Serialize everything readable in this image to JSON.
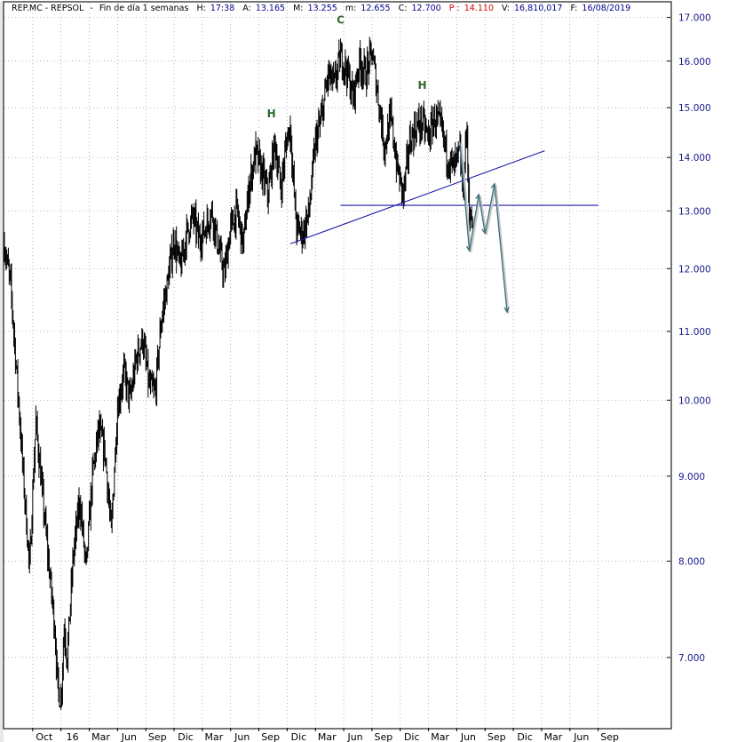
{
  "header": {
    "symbol": "REP.MC - REPSOL",
    "timeframe": "Fin de día 1 semanas",
    "h_label": "H:",
    "h_value": "17:38",
    "a_label": "A:",
    "a_value": "13.165",
    "m_label": "M:",
    "m_value": "13.255",
    "mn_label": "m:",
    "mn_value": "12.655",
    "c_label": "C:",
    "c_value": "12.700",
    "p_label": "P :",
    "p_value": "14.110",
    "v_label": "V:",
    "v_value": "16,810,017",
    "f_label": "F:",
    "f_value": "16/08/2019"
  },
  "chart_data": {
    "type": "line",
    "scale": "log",
    "ylim": [
      6.35,
      17.35
    ],
    "xlim": [
      0,
      212
    ],
    "grid": true,
    "y_ticks": [
      {
        "value": 7,
        "label": "7.000"
      },
      {
        "value": 8,
        "label": "8.000"
      },
      {
        "value": 9,
        "label": "9.000"
      },
      {
        "value": 10,
        "label": "10.000"
      },
      {
        "value": 11,
        "label": "11.000"
      },
      {
        "value": 12,
        "label": "12.000"
      },
      {
        "value": 13,
        "label": "13.000"
      },
      {
        "value": 14,
        "label": "14.000"
      },
      {
        "value": 15,
        "label": "15.000"
      },
      {
        "value": 16,
        "label": "16.000"
      },
      {
        "value": 17,
        "label": "17.000"
      }
    ],
    "x_ticks": [
      {
        "week": 9,
        "label": "Oct"
      },
      {
        "week": 18,
        "label": "16"
      },
      {
        "week": 27,
        "label": "Mar"
      },
      {
        "week": 36,
        "label": "Jun"
      },
      {
        "week": 45,
        "label": "Sep"
      },
      {
        "week": 54,
        "label": "Dic"
      },
      {
        "week": 63,
        "label": "Mar"
      },
      {
        "week": 72,
        "label": "Jun"
      },
      {
        "week": 81,
        "label": "Sep"
      },
      {
        "week": 90,
        "label": "Dic"
      },
      {
        "week": 99,
        "label": "Mar"
      },
      {
        "week": 108,
        "label": "Jun"
      },
      {
        "week": 117,
        "label": "Sep"
      },
      {
        "week": 126,
        "label": "Dic"
      },
      {
        "week": 135,
        "label": "Mar"
      },
      {
        "week": 144,
        "label": "Jun"
      },
      {
        "week": 153,
        "label": "Sep"
      },
      {
        "week": 162,
        "label": "Dic"
      },
      {
        "week": 171,
        "label": "Mar"
      },
      {
        "week": 180,
        "label": "Jun"
      },
      {
        "week": 189,
        "label": "Sep"
      }
    ],
    "price_anchors": [
      [
        0,
        12.4
      ],
      [
        2,
        11.7
      ],
      [
        4,
        10.3
      ],
      [
        6,
        9.0
      ],
      [
        8,
        7.9
      ],
      [
        10,
        9.7
      ],
      [
        12,
        8.8
      ],
      [
        14,
        8.0
      ],
      [
        16,
        7.3
      ],
      [
        17,
        6.7
      ],
      [
        18,
        6.6
      ],
      [
        19,
        7.3
      ],
      [
        20,
        7.0
      ],
      [
        22,
        8.1
      ],
      [
        24,
        8.7
      ],
      [
        26,
        7.9
      ],
      [
        28,
        9.0
      ],
      [
        30,
        9.6
      ],
      [
        32,
        9.3
      ],
      [
        34,
        8.3
      ],
      [
        36,
        9.9
      ],
      [
        38,
        10.4
      ],
      [
        40,
        10.0
      ],
      [
        42,
        10.6
      ],
      [
        44,
        10.9
      ],
      [
        46,
        10.2
      ],
      [
        48,
        10.1
      ],
      [
        50,
        11.2
      ],
      [
        52,
        11.8
      ],
      [
        54,
        12.5
      ],
      [
        56,
        12.0
      ],
      [
        58,
        12.6
      ],
      [
        60,
        12.9
      ],
      [
        62,
        12.5
      ],
      [
        64,
        12.7
      ],
      [
        66,
        13.0
      ],
      [
        68,
        12.4
      ],
      [
        70,
        11.9
      ],
      [
        72,
        12.7
      ],
      [
        74,
        13.0
      ],
      [
        76,
        12.4
      ],
      [
        78,
        13.5
      ],
      [
        80,
        14.1
      ],
      [
        82,
        13.7
      ],
      [
        84,
        13.3
      ],
      [
        86,
        14.3
      ],
      [
        88,
        13.4
      ],
      [
        90,
        14.4
      ],
      [
        91,
        14.6
      ],
      [
        92,
        13.5
      ],
      [
        93,
        12.7
      ],
      [
        95,
        12.6
      ],
      [
        97,
        13.0
      ],
      [
        99,
        14.3
      ],
      [
        101,
        14.8
      ],
      [
        103,
        15.7
      ],
      [
        105,
        15.5
      ],
      [
        107,
        16.1
      ],
      [
        109,
        15.8
      ],
      [
        111,
        15.2
      ],
      [
        113,
        16.0
      ],
      [
        115,
        15.7
      ],
      [
        117,
        16.2
      ],
      [
        119,
        15.2
      ],
      [
        121,
        14.2
      ],
      [
        123,
        14.8
      ],
      [
        125,
        13.8
      ],
      [
        127,
        13.3
      ],
      [
        129,
        14.3
      ],
      [
        131,
        14.6
      ],
      [
        133,
        14.7
      ],
      [
        135,
        14.4
      ],
      [
        137,
        14.8
      ],
      [
        139,
        14.6
      ],
      [
        141,
        14.0
      ],
      [
        143,
        13.8
      ],
      [
        145,
        14.1
      ],
      [
        146,
        13.2
      ],
      [
        147,
        14.6
      ],
      [
        148,
        13.0
      ],
      [
        149,
        12.7
      ]
    ],
    "annotations": [
      {
        "label": "H",
        "week": 85,
        "value": 14.8
      },
      {
        "label": "C",
        "week": 107,
        "value": 16.85
      },
      {
        "label": "H",
        "week": 133,
        "value": 15.4
      }
    ],
    "trendlines": [
      {
        "name": "neckline-ascending",
        "start": {
          "week": 91,
          "value": 12.42
        },
        "end": {
          "week": 172,
          "value": 14.13
        },
        "color": "#1a1aa8"
      },
      {
        "name": "neckline-horizontal",
        "start": {
          "week": 107,
          "value": 13.1
        },
        "end": {
          "week": 189,
          "value": 13.1
        },
        "color": "#1a1aa8"
      }
    ],
    "projection": {
      "color": "#3b6f7a",
      "points": [
        [
          145,
          14.3
        ],
        [
          148,
          12.3
        ],
        [
          151,
          13.3
        ],
        [
          153,
          12.6
        ],
        [
          156,
          13.5
        ],
        [
          160,
          11.3
        ]
      ]
    }
  }
}
